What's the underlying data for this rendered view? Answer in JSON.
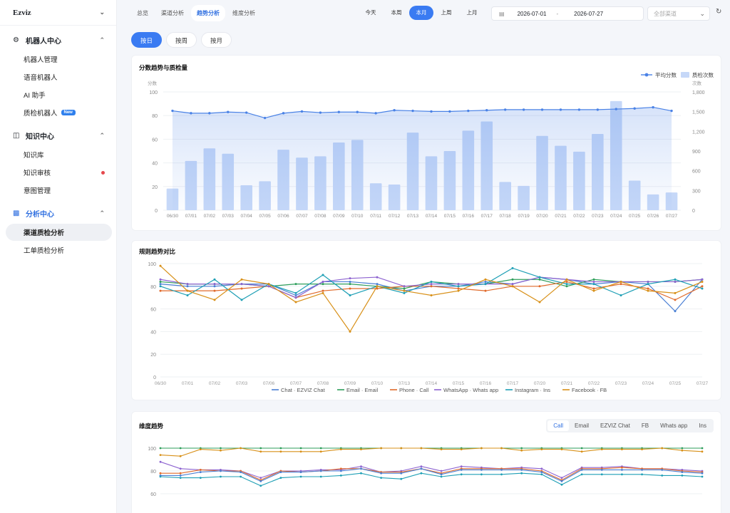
{
  "sidebar": {
    "brand": "Ezviz",
    "groups": [
      {
        "label": "机器人中心",
        "items": [
          {
            "label": "机器人管理"
          },
          {
            "label": "语音机器人"
          },
          {
            "label": "AI 助手"
          },
          {
            "label": "质检机器人",
            "badge": "New"
          }
        ]
      },
      {
        "label": "知识中心",
        "items": [
          {
            "label": "知识库"
          },
          {
            "label": "知识审核"
          },
          {
            "label": "意图管理"
          }
        ]
      },
      {
        "label": "分析中心",
        "items": [
          {
            "label": "渠道质检分析"
          },
          {
            "label": "工单质检分析"
          }
        ]
      }
    ]
  },
  "topbar": {
    "tabs": [
      "总览",
      "渠道分析",
      "趋势分析",
      "维度分析"
    ],
    "active_tab": 2,
    "periods": [
      "今天",
      "本周",
      "本月",
      "上周",
      "上月"
    ],
    "active_period": 2,
    "date_start": "2026-07-01",
    "date_sep": "-",
    "date_end": "2026-07-27",
    "channel_placeholder": "全部渠道"
  },
  "subtabs": [
    "按日",
    "按周",
    "按月"
  ],
  "active_subtab": 0,
  "colors": {
    "accent": "#3a7bf2",
    "bar": "#c6d8f8",
    "avg_line": "#4a82e6",
    "status_red": "#e5484d"
  },
  "chart_data": [
    {
      "type": "bar+line",
      "title": "分数趋势与质检量",
      "categories": [
        "06/30",
        "07/01",
        "07/02",
        "07/03",
        "07/04",
        "07/05",
        "07/06",
        "07/07",
        "07/08",
        "07/09",
        "07/10",
        "07/11",
        "07/12",
        "07/13",
        "07/14",
        "07/15",
        "07/16",
        "07/17",
        "07/18",
        "07/19",
        "07/20",
        "07/21",
        "07/22",
        "07/23",
        "07/24",
        "07/25",
        "07/26",
        "07/27"
      ],
      "ylabel_left": "分数",
      "ylabel_right": "次数",
      "ylim_left": [
        0,
        100
      ],
      "ylim_right": [
        0,
        1800
      ],
      "yticks_left": [
        "0",
        "20",
        "40",
        "60",
        "80",
        "100"
      ],
      "yticks_right": [
        "0",
        "300",
        "600",
        "900",
        "1,200",
        "1,500",
        "1,800"
      ],
      "legend_position": "top-right",
      "series": [
        {
          "name": "平均分数",
          "kind": "line",
          "axis": "left",
          "values": [
            84,
            82,
            82,
            83,
            82.5,
            78,
            82,
            83.5,
            82.5,
            83,
            83,
            82,
            84.5,
            84,
            83.5,
            83.5,
            84,
            84.5,
            85,
            85,
            85,
            85,
            85,
            85,
            85.5,
            86,
            87,
            84
          ]
        },
        {
          "name": "质检次数",
          "kind": "bar",
          "axis": "right",
          "values": [
            330,
            750,
            940,
            860,
            380,
            440,
            920,
            800,
            820,
            1030,
            1070,
            410,
            390,
            1180,
            820,
            900,
            1210,
            1350,
            430,
            370,
            1130,
            980,
            890,
            1160,
            1660,
            450,
            240,
            270
          ]
        }
      ]
    },
    {
      "type": "line",
      "title": "规则趋势对比",
      "categories": [
        "06/30",
        "07/01",
        "07/02",
        "07/03",
        "07/06",
        "07/07",
        "07/08",
        "07/09",
        "07/10",
        "07/13",
        "07/14",
        "07/15",
        "07/16",
        "07/17",
        "07/20",
        "07/21",
        "07/22",
        "07/23",
        "07/24",
        "07/25",
        "07/27"
      ],
      "ylim": [
        0,
        100
      ],
      "yticks": [
        "0",
        "20",
        "40",
        "60",
        "80",
        "100"
      ],
      "legend_position": "bottom",
      "series": [
        {
          "name": "Chat · EZVIZ Chat",
          "color": "#4a7fd4",
          "values": [
            82,
            80,
            80,
            82,
            82,
            72,
            84,
            84,
            82,
            76,
            80,
            80,
            84,
            82,
            88,
            86,
            82,
            84,
            82,
            58,
            86
          ]
        },
        {
          "name": "Email · Email",
          "color": "#2e9e5b",
          "values": [
            84,
            82,
            82,
            82,
            80,
            82,
            82,
            82,
            80,
            78,
            84,
            82,
            82,
            86,
            86,
            80,
            86,
            84,
            84,
            84,
            86
          ]
        },
        {
          "name": "Phone · Call",
          "color": "#e06a2b",
          "values": [
            76,
            76,
            76,
            78,
            80,
            70,
            76,
            78,
            78,
            80,
            80,
            78,
            76,
            80,
            80,
            84,
            78,
            82,
            78,
            68,
            80
          ]
        },
        {
          "name": "WhatsApp · Whats app",
          "color": "#8d63d0",
          "values": [
            86,
            82,
            82,
            82,
            80,
            70,
            84,
            87,
            88,
            80,
            82,
            82,
            82,
            82,
            88,
            86,
            84,
            84,
            84,
            84,
            86
          ]
        },
        {
          "name": "Instagram · Ins",
          "color": "#1e9fb5",
          "values": [
            80,
            72,
            86,
            68,
            82,
            74,
            90,
            72,
            80,
            74,
            84,
            80,
            82,
            96,
            88,
            82,
            82,
            72,
            82,
            86,
            78
          ]
        },
        {
          "name": "Facebook · FB",
          "color": "#d89018",
          "values": [
            98,
            76,
            68,
            86,
            82,
            66,
            74,
            40,
            80,
            76,
            72,
            76,
            86,
            80,
            66,
            86,
            76,
            84,
            76,
            74,
            84
          ]
        }
      ]
    },
    {
      "type": "line",
      "title": "维度趋势",
      "tabs": [
        "Call",
        "Email",
        "EZVIZ Chat",
        "FB",
        "Whats app",
        "Ins"
      ],
      "active_tab": 0,
      "ylim": [
        60,
        100
      ],
      "yticks": [
        "60",
        "80",
        "100"
      ],
      "series": [
        {
          "color": "#2e9e5b",
          "values": [
            100,
            100,
            100,
            100,
            100,
            100,
            100,
            100,
            100,
            100,
            100,
            100,
            100,
            100,
            100,
            100,
            100,
            100,
            100,
            100,
            100,
            100,
            100,
            100,
            100,
            100,
            100,
            100
          ]
        },
        {
          "color": "#d89018",
          "values": [
            94,
            93,
            99,
            98,
            100,
            97,
            97,
            97,
            97,
            99,
            99,
            100,
            100,
            100,
            99,
            99,
            100,
            100,
            98,
            99,
            99,
            97,
            99,
            99,
            99,
            100,
            98,
            97
          ]
        },
        {
          "color": "#8d63d0",
          "values": [
            88,
            82,
            81,
            81,
            80,
            74,
            80,
            80,
            81,
            81,
            84,
            79,
            80,
            84,
            80,
            84,
            83,
            82,
            83,
            82,
            74,
            83,
            83,
            84,
            82,
            82,
            81,
            80
          ]
        },
        {
          "color": "#e06a2b",
          "values": [
            78,
            78,
            81,
            80,
            80,
            72,
            80,
            79,
            80,
            82,
            82,
            79,
            79,
            82,
            78,
            82,
            82,
            82,
            82,
            80,
            72,
            82,
            82,
            83,
            82,
            82,
            80,
            79
          ]
        },
        {
          "color": "#4a7fd4",
          "values": [
            76,
            76,
            79,
            80,
            79,
            71,
            79,
            79,
            80,
            80,
            82,
            78,
            78,
            82,
            77,
            81,
            81,
            81,
            81,
            79,
            71,
            81,
            81,
            81,
            81,
            81,
            79,
            78
          ]
        },
        {
          "color": "#1e9fb5",
          "values": [
            75,
            74,
            74,
            75,
            75,
            67,
            74,
            75,
            75,
            76,
            78,
            74,
            73,
            78,
            75,
            77,
            77,
            77,
            78,
            77,
            68,
            77,
            77,
            77,
            77,
            76,
            76,
            75
          ]
        }
      ]
    }
  ]
}
